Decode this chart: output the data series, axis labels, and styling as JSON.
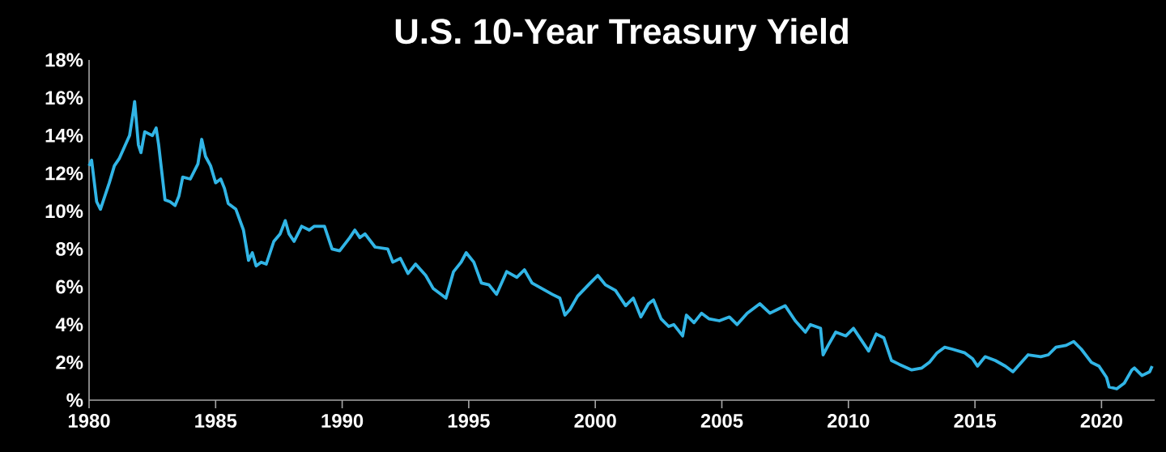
{
  "chart_data": {
    "type": "line",
    "title": "U.S. 10-Year Treasury Yield",
    "xlim": [
      1980,
      2022.1
    ],
    "xticks": [
      1980,
      1985,
      1990,
      1995,
      2000,
      2005,
      2010,
      2015,
      2020
    ],
    "ylim": [
      0,
      18
    ],
    "yticks": [
      {
        "value": 0,
        "label": "%"
      },
      {
        "value": 2,
        "label": "2%"
      },
      {
        "value": 4,
        "label": "4%"
      },
      {
        "value": 6,
        "label": "6%"
      },
      {
        "value": 8,
        "label": "8%"
      },
      {
        "value": 10,
        "label": "10%"
      },
      {
        "value": 12,
        "label": "12%"
      },
      {
        "value": 14,
        "label": "14%"
      },
      {
        "value": 16,
        "label": "16%"
      },
      {
        "value": 18,
        "label": "18%"
      }
    ],
    "series": [
      {
        "color": "#31b5e6",
        "x": [
          1980.0,
          1980.1,
          1980.3,
          1980.45,
          1980.8,
          1981.0,
          1981.2,
          1981.4,
          1981.6,
          1981.75,
          1981.8,
          1981.95,
          1982.05,
          1982.2,
          1982.5,
          1982.65,
          1982.75,
          1983.0,
          1983.2,
          1983.4,
          1983.55,
          1983.7,
          1984.0,
          1984.3,
          1984.45,
          1984.6,
          1984.8,
          1985.0,
          1985.2,
          1985.35,
          1985.5,
          1985.8,
          1986.1,
          1986.3,
          1986.45,
          1986.6,
          1986.8,
          1987.0,
          1987.3,
          1987.55,
          1987.75,
          1987.9,
          1988.1,
          1988.4,
          1988.7,
          1988.9,
          1989.3,
          1989.6,
          1989.9,
          1990.3,
          1990.5,
          1990.7,
          1990.9,
          1991.3,
          1991.8,
          1992.0,
          1992.3,
          1992.6,
          1992.9,
          1993.3,
          1993.6,
          1993.9,
          1994.1,
          1994.4,
          1994.7,
          1994.9,
          1995.2,
          1995.5,
          1995.8,
          1996.1,
          1996.5,
          1996.9,
          1997.2,
          1997.5,
          1997.9,
          1998.3,
          1998.6,
          1998.8,
          1999.0,
          1999.3,
          1999.8,
          2000.1,
          2000.4,
          2000.8,
          2001.2,
          2001.5,
          2001.8,
          2002.1,
          2002.3,
          2002.6,
          2002.9,
          2003.1,
          2003.45,
          2003.6,
          2003.9,
          2004.2,
          2004.5,
          2004.9,
          2005.3,
          2005.6,
          2006.0,
          2006.5,
          2006.9,
          2007.2,
          2007.5,
          2007.9,
          2008.3,
          2008.5,
          2008.9,
          2009.0,
          2009.2,
          2009.5,
          2009.9,
          2010.2,
          2010.5,
          2010.8,
          2011.1,
          2011.4,
          2011.7,
          2012.0,
          2012.5,
          2012.9,
          2013.2,
          2013.5,
          2013.8,
          2014.1,
          2014.6,
          2014.9,
          2015.1,
          2015.4,
          2015.8,
          2016.2,
          2016.5,
          2016.9,
          2017.1,
          2017.6,
          2017.9,
          2018.2,
          2018.6,
          2018.9,
          2019.2,
          2019.6,
          2019.9,
          2020.2,
          2020.3,
          2020.6,
          2020.9,
          2021.2,
          2021.3,
          2021.6,
          2021.9,
          2022.0
        ],
        "values": [
          12.4,
          12.7,
          10.5,
          10.1,
          11.5,
          12.4,
          12.8,
          13.4,
          14.0,
          15.3,
          15.8,
          13.5,
          13.1,
          14.2,
          14.0,
          14.4,
          13.5,
          10.6,
          10.5,
          10.3,
          10.8,
          11.8,
          11.7,
          12.5,
          13.8,
          12.9,
          12.4,
          11.5,
          11.7,
          11.2,
          10.4,
          10.1,
          9.0,
          7.4,
          7.8,
          7.1,
          7.3,
          7.2,
          8.4,
          8.8,
          9.5,
          8.8,
          8.4,
          9.2,
          9.0,
          9.2,
          9.2,
          8.0,
          7.9,
          8.6,
          9.0,
          8.6,
          8.8,
          8.1,
          8.0,
          7.3,
          7.5,
          6.7,
          7.2,
          6.6,
          5.9,
          5.6,
          5.4,
          6.8,
          7.3,
          7.8,
          7.3,
          6.2,
          6.1,
          5.6,
          6.8,
          6.5,
          6.9,
          6.2,
          5.9,
          5.6,
          5.4,
          4.5,
          4.8,
          5.5,
          6.2,
          6.6,
          6.1,
          5.8,
          5.0,
          5.4,
          4.4,
          5.1,
          5.3,
          4.3,
          3.9,
          4.0,
          3.4,
          4.5,
          4.1,
          4.6,
          4.3,
          4.2,
          4.4,
          4.0,
          4.6,
          5.1,
          4.6,
          4.8,
          5.0,
          4.2,
          3.6,
          4.0,
          3.8,
          2.4,
          2.9,
          3.6,
          3.4,
          3.8,
          3.2,
          2.6,
          3.5,
          3.3,
          2.1,
          1.9,
          1.6,
          1.7,
          2.0,
          2.5,
          2.8,
          2.7,
          2.5,
          2.2,
          1.8,
          2.3,
          2.1,
          1.8,
          1.5,
          2.1,
          2.4,
          2.3,
          2.4,
          2.8,
          2.9,
          3.1,
          2.7,
          2.0,
          1.8,
          1.2,
          0.7,
          0.6,
          0.9,
          1.6,
          1.7,
          1.3,
          1.5,
          1.8
        ]
      }
    ]
  }
}
